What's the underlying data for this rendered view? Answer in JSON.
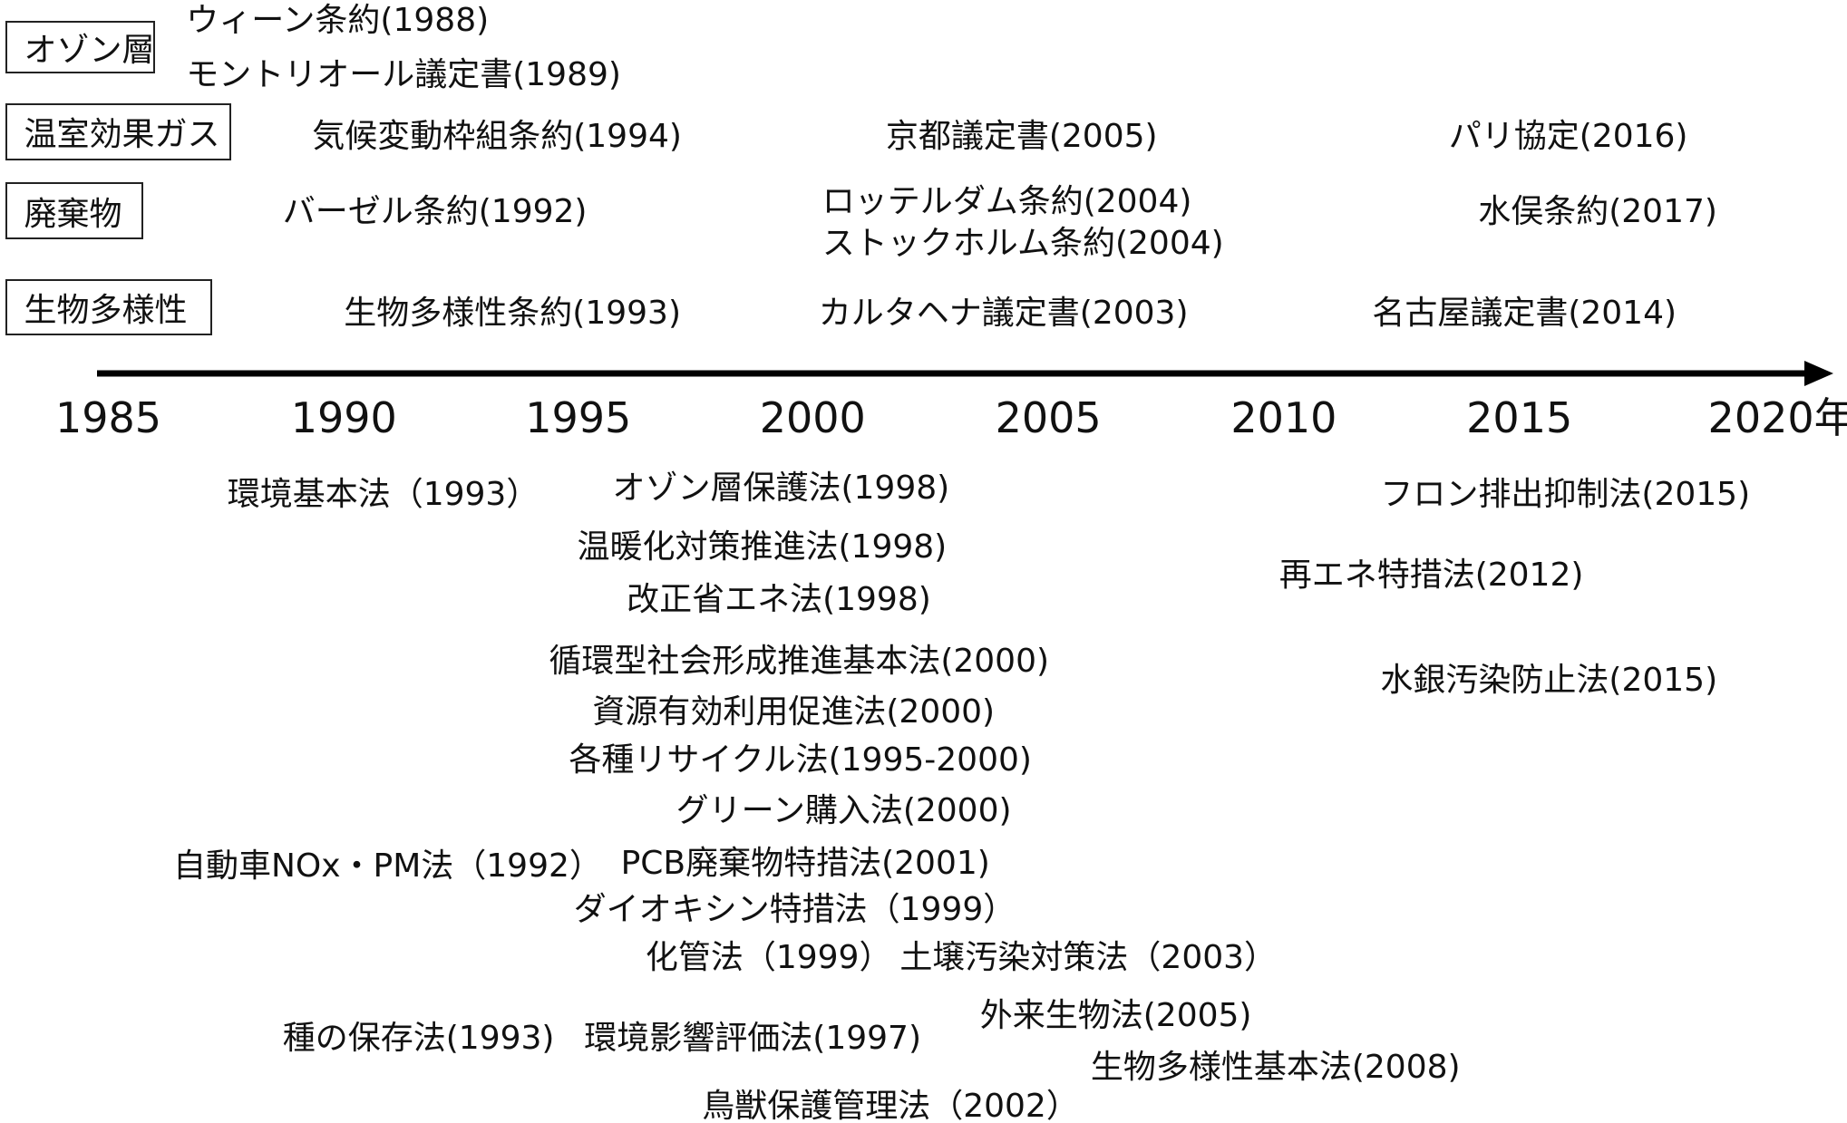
{
  "categories": [
    "オゾン層",
    "温室効果ガス",
    "廃棄物",
    "生物多様性"
  ],
  "treaties": [
    "ウィーン条約(1988)",
    "モントリオール議定書(1989)",
    "気候変動枠組条約(1994)",
    "京都議定書(2005)",
    "パリ協定(2016)",
    "バーゼル条約(1992)",
    "ロッテルダム条約(2004)",
    "ストックホルム条約(2004)",
    "水俣条約(2017)",
    "生物多様性条約(1993)",
    "カルタヘナ議定書(2003)",
    "名古屋議定書(2014)"
  ],
  "axis": {
    "years": [
      "1985",
      "1990",
      "1995",
      "2000",
      "2005",
      "2010",
      "2015",
      "2020年"
    ]
  },
  "laws": [
    "環境基本法（1993）",
    "オゾン層保護法(1998)",
    "フロン排出抑制法(2015)",
    "温暖化対策推進法(1998)",
    "再エネ特措法(2012)",
    "改正省エネ法(1998)",
    "循環型社会形成推進基本法(2000)",
    "水銀汚染防止法(2015)",
    "資源有効利用促進法(2000)",
    "各種リサイクル法(1995-2000)",
    "グリーン購入法(2000)",
    "自動車NOx・PM法（1992）",
    "PCB廃棄物特措法(2001)",
    "ダイオキシン特措法（1999）",
    "化管法（1999）",
    "土壌汚染対策法（2003）",
    "外来生物法(2005)",
    "種の保存法(1993)",
    "環境影響評価法(1997)",
    "生物多様性基本法(2008)",
    "鳥獣保護管理法（2002）"
  ]
}
